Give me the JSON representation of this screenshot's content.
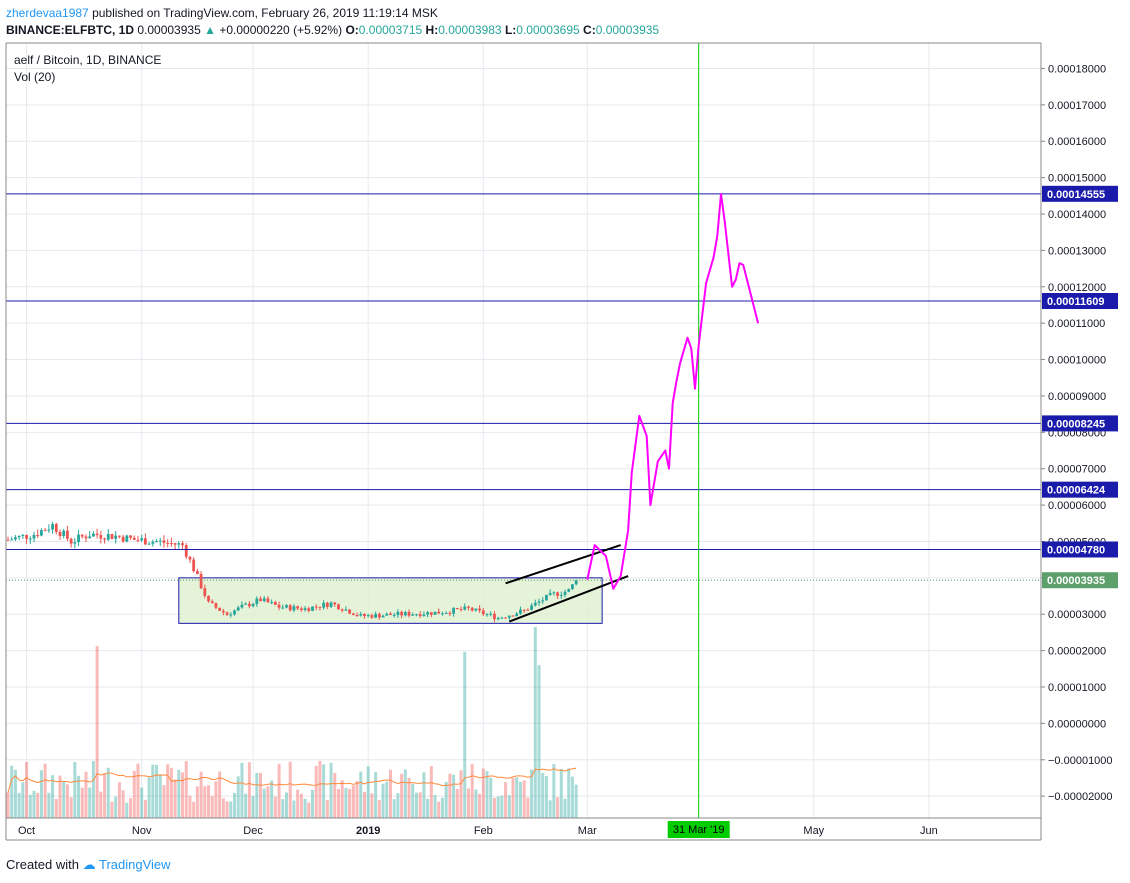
{
  "header": {
    "author": "zherdevaa1987",
    "published_text": " published on TradingView.com, February 26, 2019 11:19:14 MSK",
    "symbol": "BINANCE:ELFBTC, 1D",
    "last": "0.00003935",
    "change": "+0.00000220 (+5.92%)",
    "o_label": "O:",
    "o": "0.00003715",
    "h_label": "H:",
    "h": "0.00003983",
    "l_label": "L:",
    "l": "0.00003695",
    "c_label": "C:",
    "c": "0.00003935"
  },
  "legend": {
    "title": "aelf / Bitcoin, 1D, BINANCE",
    "volume": "Vol (20)"
  },
  "footer": {
    "created_with": "Created with",
    "brand": "TradingView"
  },
  "colors": {
    "up": "#26a69a",
    "down": "#ef5350",
    "level_line": "#1a1aab",
    "projection": "#ff00ff",
    "vertical_marker": "#00cc00",
    "box_fill": "#dff0d0",
    "grid": "#e6e9ee",
    "current_price": "#5c9f6b"
  },
  "chart_data": {
    "type": "candlestick",
    "y_axis_ticks": [
      "0.00018000",
      "0.00017000",
      "0.00016000",
      "0.00015000",
      "0.00014000",
      "0.00013000",
      "0.00012000",
      "0.00011000",
      "0.00010000",
      "0.00009000",
      "0.00008000",
      "0.00007000",
      "0.00006000",
      "0.00005000",
      "0.00004000",
      "0.00003000",
      "0.00002000",
      "0.00001000",
      "0.00000000",
      "−0.00001000",
      "−0.00002000"
    ],
    "y_tick_values": [
      0.00018,
      0.00017,
      0.00016,
      0.00015,
      0.00014,
      0.00013,
      0.00012,
      0.00011,
      0.0001,
      9e-05,
      8e-05,
      7e-05,
      6e-05,
      5e-05,
      4e-05,
      3e-05,
      2e-05,
      1e-05,
      0,
      -1e-05,
      -2e-05
    ],
    "x_axis_labels": [
      "Oct",
      "Nov",
      "Dec",
      "2019",
      "Feb",
      "Mar",
      "May",
      "Jun"
    ],
    "x_label_dates": [
      "2018-10-01",
      "2018-11-01",
      "2018-12-01",
      "2019-01-01",
      "2019-02-01",
      "2019-03-01",
      "2019-05-01",
      "2019-06-01"
    ],
    "time_start": "2018-09-26",
    "time_end": "2019-03-02",
    "horizontal_levels": [
      {
        "value": 0.00014555,
        "label": "0.00014555"
      },
      {
        "value": 0.00011609,
        "label": "0.00011609"
      },
      {
        "value": 8.245e-05,
        "label": "0.00008245"
      },
      {
        "value": 6.424e-05,
        "label": "0.00006424"
      },
      {
        "value": 4.78e-05,
        "label": "0.00004780"
      }
    ],
    "current_price": {
      "value": 3.935e-05,
      "label": "0.00003935"
    },
    "vertical_marker": {
      "date": "2019-03-31",
      "label": "31 Mar '19"
    },
    "consolidation_box": {
      "date_from": "2018-11-11",
      "date_to": "2019-03-05",
      "price_low": 2.75e-05,
      "price_high": 4e-05
    },
    "channel_lines": [
      {
        "from": {
          "date": "2019-02-07",
          "price": 3.85e-05
        },
        "to": {
          "date": "2019-03-10",
          "price": 4.9e-05
        }
      },
      {
        "from": {
          "date": "2019-02-08",
          "price": 2.8e-05
        },
        "to": {
          "date": "2019-03-12",
          "price": 4.05e-05
        }
      }
    ],
    "projection_path": [
      [
        "2019-03-01",
        3.95e-05
      ],
      [
        "2019-03-03",
        4.9e-05
      ],
      [
        "2019-03-06",
        4.6e-05
      ],
      [
        "2019-03-08",
        3.7e-05
      ],
      [
        "2019-03-10",
        4.05e-05
      ],
      [
        "2019-03-12",
        5.3e-05
      ],
      [
        "2019-03-13",
        6.9e-05
      ],
      [
        "2019-03-15",
        8.45e-05
      ],
      [
        "2019-03-17",
        7.9e-05
      ],
      [
        "2019-03-18",
        6e-05
      ],
      [
        "2019-03-20",
        7.2e-05
      ],
      [
        "2019-03-22",
        7.5e-05
      ],
      [
        "2019-03-23",
        7e-05
      ],
      [
        "2019-03-24",
        8.8e-05
      ],
      [
        "2019-03-25",
        9.4e-05
      ],
      [
        "2019-03-26",
        9.9e-05
      ],
      [
        "2019-03-28",
        0.000106
      ],
      [
        "2019-03-29",
        0.000103
      ],
      [
        "2019-03-30",
        9.2e-05
      ],
      [
        "2019-03-31",
        0.000104
      ],
      [
        "2019-04-02",
        0.000121
      ],
      [
        "2019-04-04",
        0.000128
      ],
      [
        "2019-04-05",
        0.000134
      ],
      [
        "2019-04-06",
        0.0001455
      ],
      [
        "2019-04-07",
        0.000138
      ],
      [
        "2019-04-09",
        0.00012
      ],
      [
        "2019-04-10",
        0.000122
      ],
      [
        "2019-04-11",
        0.0001265
      ],
      [
        "2019-04-12",
        0.000126
      ],
      [
        "2019-04-14",
        0.000118
      ],
      [
        "2019-04-16",
        0.00011
      ]
    ],
    "ohlc_anchor": [
      [
        "2018-09-26",
        5.05e-05
      ],
      [
        "2018-10-03",
        5.2e-05
      ],
      [
        "2018-10-08",
        5.45e-05
      ],
      [
        "2018-10-13",
        5e-05
      ],
      [
        "2018-10-18",
        5.2e-05
      ],
      [
        "2018-10-25",
        5.15e-05
      ],
      [
        "2018-10-30",
        5.05e-05
      ],
      [
        "2018-11-05",
        5e-05
      ],
      [
        "2018-11-12",
        4.9e-05
      ],
      [
        "2018-11-15",
        4.25e-05
      ],
      [
        "2018-11-19",
        3.3e-05
      ],
      [
        "2018-11-24",
        3e-05
      ],
      [
        "2018-11-28",
        3.2e-05
      ],
      [
        "2018-12-03",
        3.4e-05
      ],
      [
        "2018-12-08",
        3.2e-05
      ],
      [
        "2018-12-15",
        3.15e-05
      ],
      [
        "2018-12-22",
        3.3e-05
      ],
      [
        "2018-12-30",
        2.95e-05
      ],
      [
        "2019-01-10",
        3e-05
      ],
      [
        "2019-01-20",
        3.05e-05
      ],
      [
        "2019-01-28",
        3.15e-05
      ],
      [
        "2019-02-05",
        2.9e-05
      ],
      [
        "2019-02-12",
        3.1e-05
      ],
      [
        "2019-02-17",
        3.4e-05
      ],
      [
        "2019-02-20",
        3.55e-05
      ],
      [
        "2019-02-24",
        3.65e-05
      ],
      [
        "2019-02-26",
        3.935e-05
      ]
    ],
    "volume_spikes": [
      {
        "date": "2018-10-20",
        "level": 0.9
      },
      {
        "date": "2019-01-27",
        "level": 0.87
      },
      {
        "date": "2019-02-15",
        "level": 1.0
      },
      {
        "date": "2019-02-16",
        "level": 0.8
      }
    ],
    "y_range": [
      -2.6e-05,
      0.000187
    ]
  }
}
